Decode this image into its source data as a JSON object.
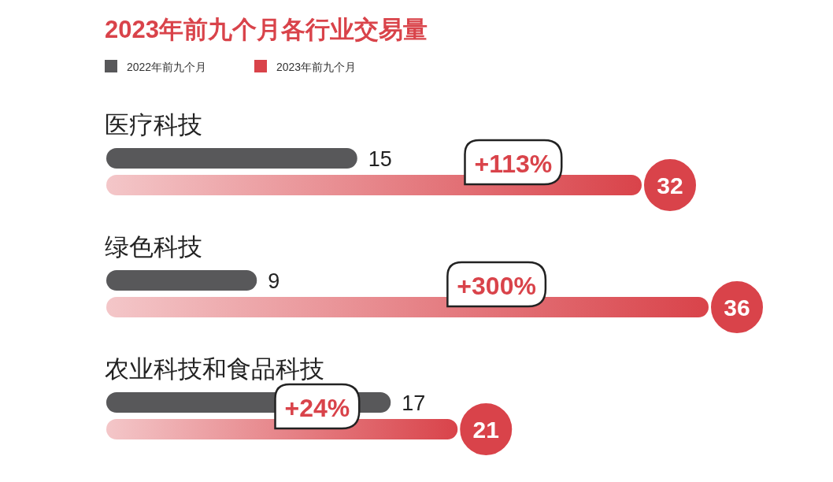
{
  "chart_data": {
    "type": "bar",
    "orientation": "horizontal",
    "title": "2023年前九个月各行业交易量",
    "categories": [
      "医疗科技",
      "绿色科技",
      "农业科技和食品科技"
    ],
    "series": [
      {
        "name": "2022年前九个月",
        "color": "#58585a",
        "values": [
          15,
          9,
          17
        ]
      },
      {
        "name": "2023年前九个月",
        "color": "#d9434a",
        "values": [
          32,
          36,
          21
        ]
      }
    ],
    "data_labels": true,
    "legend": "top left",
    "grid": false,
    "annotations": [
      "+113%",
      "+300%",
      "+24%"
    ]
  }
}
